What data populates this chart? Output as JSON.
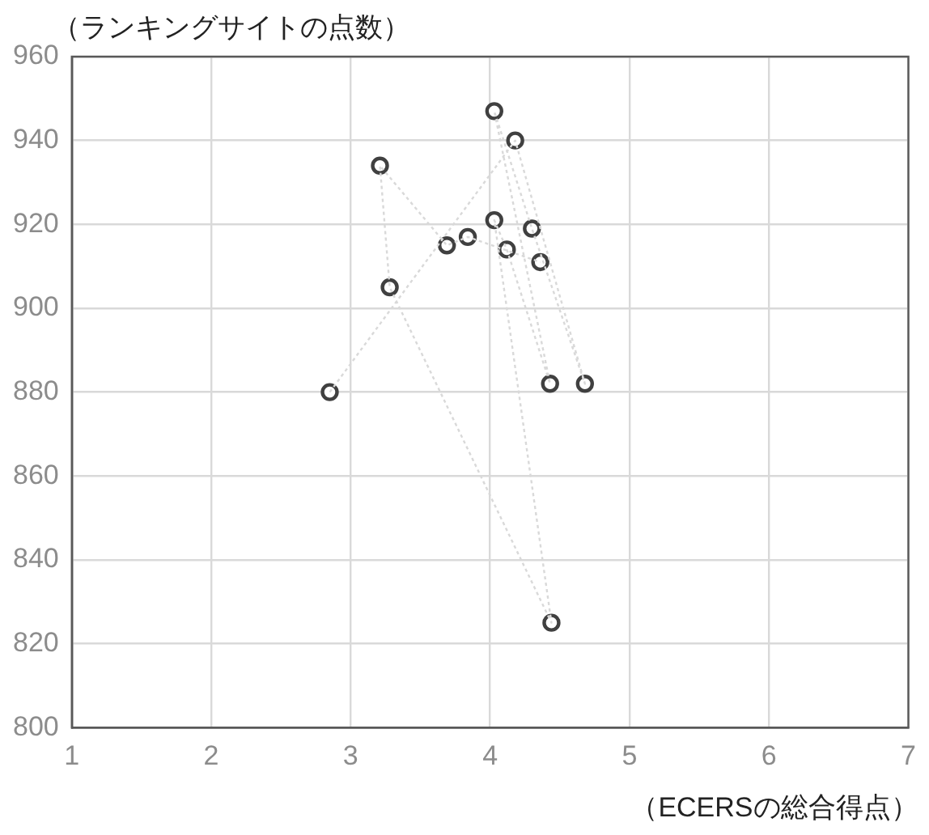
{
  "chart_data": {
    "type": "scatter",
    "xlabel": "（ECERSの総合得点）",
    "ylabel": "（ランキングサイトの点数）",
    "x": [
      2.85,
      4.18,
      4.68,
      4.3,
      4.03,
      4.43,
      4.12,
      4.03,
      4.44,
      3.28,
      3.21,
      3.69,
      3.84,
      4.36
    ],
    "series": [
      {
        "type": "line",
        "color": "#d9d9d9",
        "marker": "none",
        "line_style": "dotted",
        "values": [
          880,
          940,
          882,
          919,
          947,
          882,
          914,
          921,
          825,
          905,
          934,
          915,
          917,
          911
        ]
      },
      {
        "type": "scatter",
        "color": "#404040",
        "marker": "circle",
        "values": [
          880,
          940,
          882,
          919,
          947,
          882,
          914,
          921,
          825,
          905,
          934,
          915,
          917,
          911
        ]
      }
    ],
    "xlim": [
      1,
      7
    ],
    "xticks": [
      1,
      2,
      3,
      4,
      5,
      6,
      7
    ],
    "ylim": [
      800,
      960
    ],
    "yticks": [
      800,
      820,
      840,
      860,
      880,
      900,
      920,
      940,
      960
    ],
    "grid": true,
    "legend": false
  }
}
